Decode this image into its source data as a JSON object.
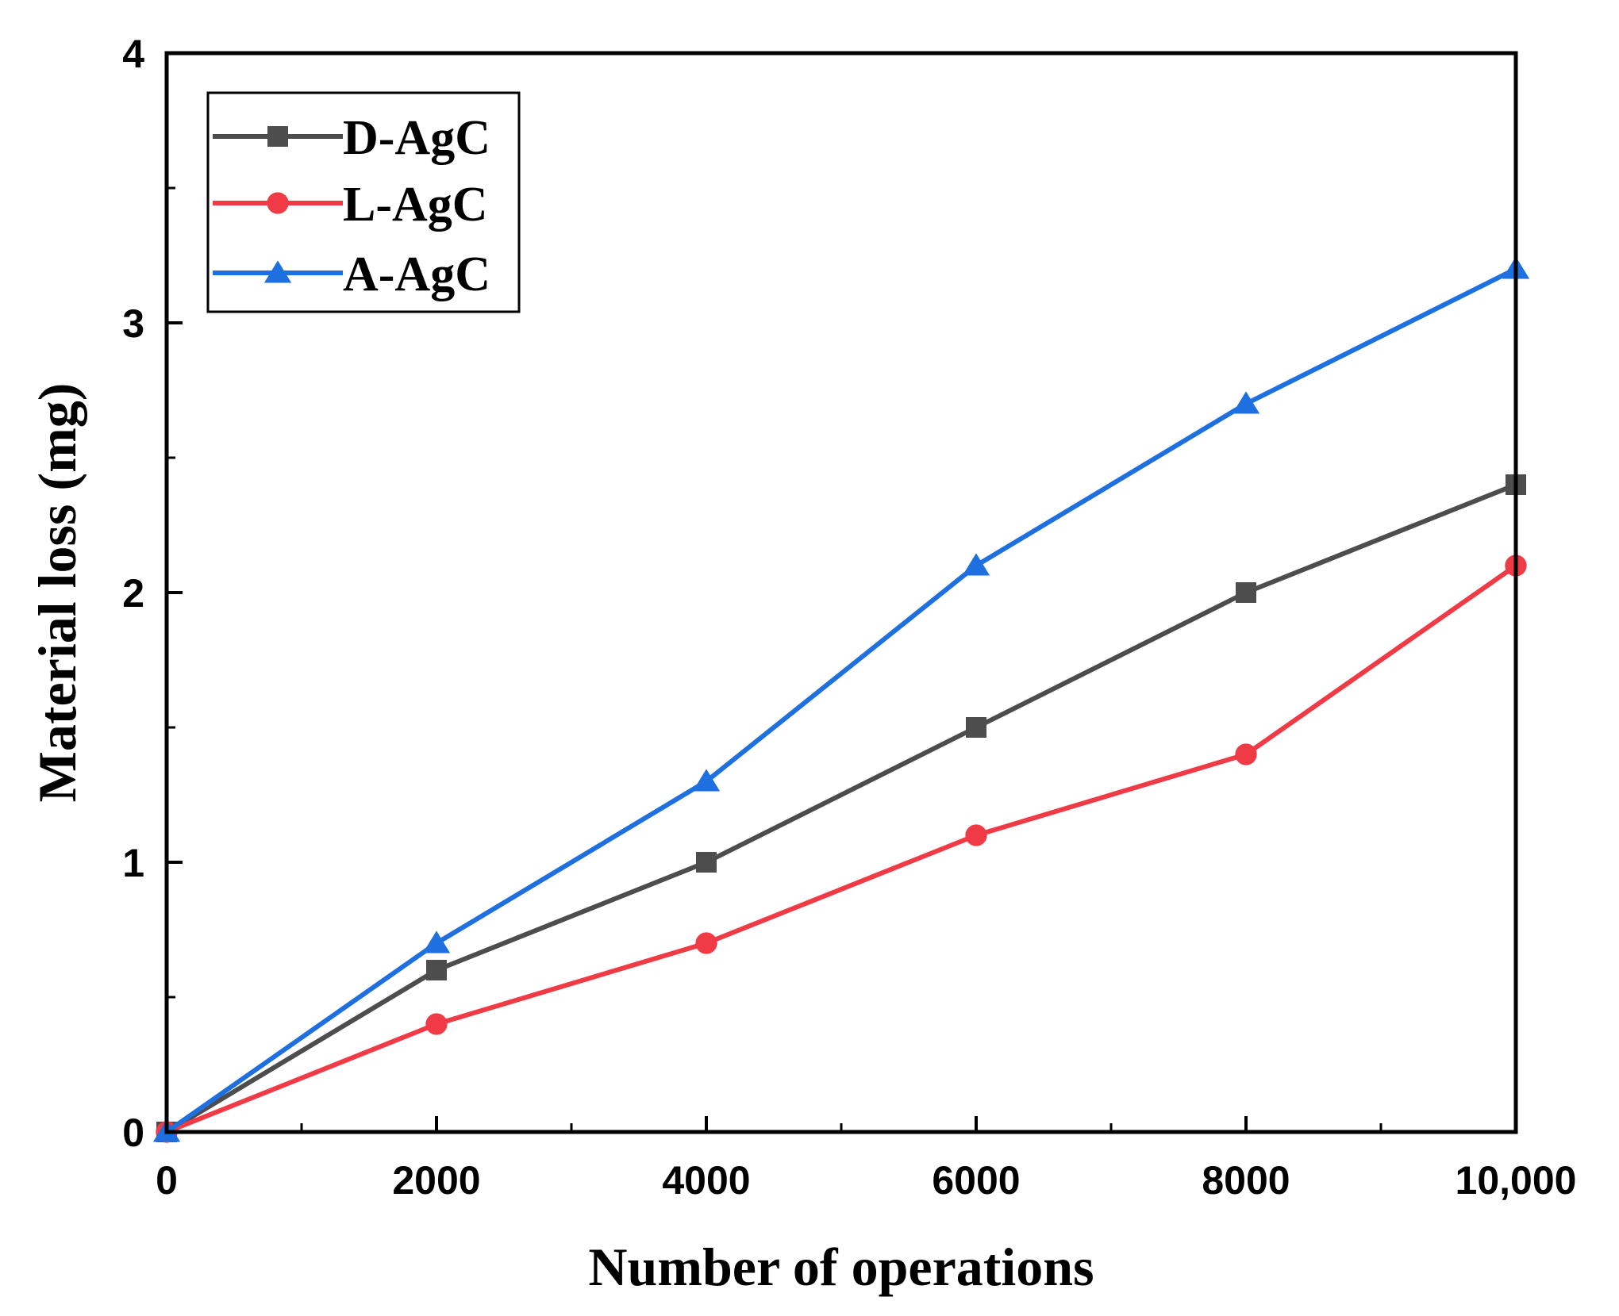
{
  "chart_data": {
    "type": "line",
    "title": "",
    "xlabel": "Number of operations",
    "ylabel": "Material loss (mg)",
    "x": [
      0,
      2000,
      4000,
      6000,
      8000,
      10000
    ],
    "xlim": [
      0,
      10000
    ],
    "ylim": [
      0,
      4
    ],
    "xticks": [
      0,
      2000,
      4000,
      6000,
      8000,
      10000
    ],
    "xtick_labels": [
      "0",
      "2000",
      "4000",
      "6000",
      "8000",
      "10,000"
    ],
    "yticks": [
      0,
      1,
      2,
      3,
      4
    ],
    "ytick_labels": [
      "0",
      "1",
      "2",
      "3",
      "4"
    ],
    "legend_position": "top-left",
    "grid": false,
    "series": [
      {
        "name": "D-AgC",
        "color": "#4d4d4d",
        "marker": "square",
        "values": [
          0,
          0.6,
          1.0,
          1.5,
          2.0,
          2.4
        ]
      },
      {
        "name": "L-AgC",
        "color": "#f03a45",
        "marker": "circle",
        "values": [
          0,
          0.4,
          0.7,
          1.1,
          1.4,
          2.1
        ]
      },
      {
        "name": "A-AgC",
        "color": "#1e6fe0",
        "marker": "triangle",
        "values": [
          0,
          0.7,
          1.3,
          2.1,
          2.7,
          3.2
        ]
      }
    ]
  }
}
